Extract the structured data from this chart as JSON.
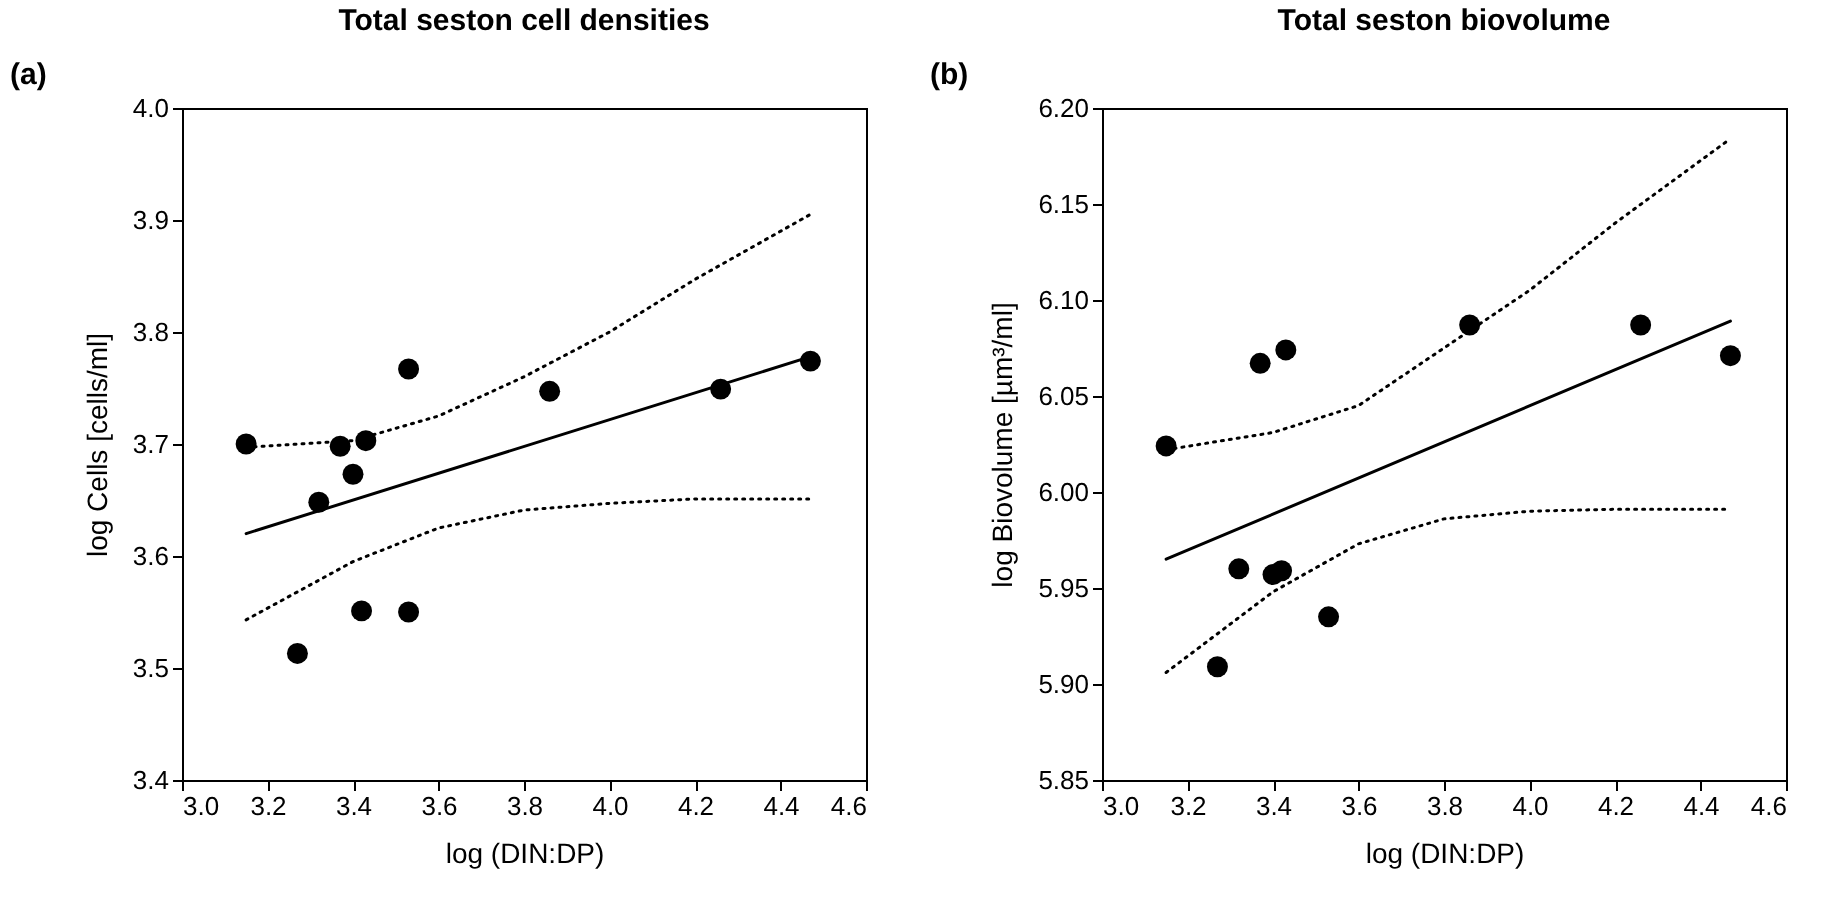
{
  "chart_data": [
    {
      "type": "scatter",
      "title": "Total seston cell densities",
      "annotations": [
        "(a)"
      ],
      "xlabel": "log (DIN:DP)",
      "ylabel": "log Cells [cells/ml]",
      "xlim": [
        3.0,
        4.6
      ],
      "ylim": [
        3.4,
        4.0
      ],
      "xticks": [
        {
          "value": 3.0,
          "label": "3.0"
        },
        {
          "value": 3.2,
          "label": "3.2"
        },
        {
          "value": 3.4,
          "label": "3.4"
        },
        {
          "value": 3.6,
          "label": "3.6"
        },
        {
          "value": 3.8,
          "label": "3.8"
        },
        {
          "value": 4.0,
          "label": "4.0"
        },
        {
          "value": 4.2,
          "label": "4.2"
        },
        {
          "value": 4.4,
          "label": "4.4"
        },
        {
          "value": 4.6,
          "label": "4.6"
        }
      ],
      "yticks": [
        {
          "value": 3.4,
          "label": "3.4"
        },
        {
          "value": 3.5,
          "label": "3.5"
        },
        {
          "value": 3.6,
          "label": "3.6"
        },
        {
          "value": 3.7,
          "label": "3.7"
        },
        {
          "value": 3.8,
          "label": "3.8"
        },
        {
          "value": 3.9,
          "label": "3.9"
        },
        {
          "value": 4.0,
          "label": "4.0"
        }
      ],
      "grid": false,
      "series": [
        {
          "type": "scatter",
          "marker": "circle",
          "color": "#000000",
          "x": [
            3.15,
            3.27,
            3.32,
            3.37,
            3.4,
            3.42,
            3.43,
            3.53,
            3.53,
            3.86,
            4.26,
            4.47
          ],
          "values": [
            3.7,
            3.513,
            3.648,
            3.698,
            3.673,
            3.551,
            3.703,
            3.767,
            3.55,
            3.747,
            3.749,
            3.774
          ]
        },
        {
          "type": "line",
          "line_style": "solid",
          "color": "#000000",
          "x": [
            3.15,
            4.47
          ],
          "values": [
            3.62,
            3.778
          ]
        },
        {
          "type": "line",
          "line_style": "dotted",
          "color": "#000000",
          "x": [
            3.15,
            3.4,
            3.6,
            3.8,
            4.0,
            4.2,
            4.47
          ],
          "values": [
            3.697,
            3.703,
            3.725,
            3.76,
            3.8,
            3.847,
            3.905
          ]
        },
        {
          "type": "line",
          "line_style": "dotted",
          "color": "#000000",
          "x": [
            3.15,
            3.4,
            3.6,
            3.8,
            4.0,
            4.2,
            4.47
          ],
          "values": [
            3.543,
            3.595,
            3.625,
            3.641,
            3.647,
            3.651,
            3.651
          ]
        }
      ]
    },
    {
      "type": "scatter",
      "title": "Total seston biovolume",
      "annotations": [
        "(b)"
      ],
      "xlabel": "log (DIN:DP)",
      "ylabel": "log Biovolume [µm³/ml]",
      "xlim": [
        3.0,
        4.6
      ],
      "ylim": [
        5.85,
        6.2
      ],
      "xticks": [
        {
          "value": 3.0,
          "label": "3.0"
        },
        {
          "value": 3.2,
          "label": "3.2"
        },
        {
          "value": 3.4,
          "label": "3.4"
        },
        {
          "value": 3.6,
          "label": "3.6"
        },
        {
          "value": 3.8,
          "label": "3.8"
        },
        {
          "value": 4.0,
          "label": "4.0"
        },
        {
          "value": 4.2,
          "label": "4.2"
        },
        {
          "value": 4.4,
          "label": "4.4"
        },
        {
          "value": 4.6,
          "label": "4.6"
        }
      ],
      "yticks": [
        {
          "value": 5.85,
          "label": "5.85"
        },
        {
          "value": 5.9,
          "label": "5.90"
        },
        {
          "value": 5.95,
          "label": "5.95"
        },
        {
          "value": 6.0,
          "label": "6.00"
        },
        {
          "value": 6.05,
          "label": "6.05"
        },
        {
          "value": 6.1,
          "label": "6.10"
        },
        {
          "value": 6.15,
          "label": "6.15"
        },
        {
          "value": 6.2,
          "label": "6.20"
        }
      ],
      "grid": false,
      "series": [
        {
          "type": "scatter",
          "marker": "circle",
          "color": "#000000",
          "x": [
            3.15,
            3.27,
            3.32,
            3.37,
            3.4,
            3.42,
            3.43,
            3.53,
            3.86,
            4.26,
            4.47
          ],
          "values": [
            6.024,
            5.909,
            5.96,
            6.067,
            5.957,
            5.959,
            6.074,
            5.935,
            6.087,
            6.087,
            6.071
          ]
        },
        {
          "type": "line",
          "line_style": "solid",
          "color": "#000000",
          "x": [
            3.15,
            4.47
          ],
          "values": [
            5.965,
            6.089
          ]
        },
        {
          "type": "line",
          "line_style": "dotted",
          "color": "#000000",
          "x": [
            3.15,
            3.4,
            3.6,
            3.8,
            4.0,
            4.2,
            4.47
          ],
          "values": [
            6.022,
            6.031,
            6.045,
            6.075,
            6.105,
            6.14,
            6.184
          ]
        },
        {
          "type": "line",
          "line_style": "dotted",
          "color": "#000000",
          "x": [
            3.15,
            3.4,
            3.6,
            3.8,
            4.0,
            4.2,
            4.47
          ],
          "values": [
            5.906,
            5.948,
            5.973,
            5.986,
            5.99,
            5.991,
            5.991
          ]
        }
      ]
    }
  ]
}
